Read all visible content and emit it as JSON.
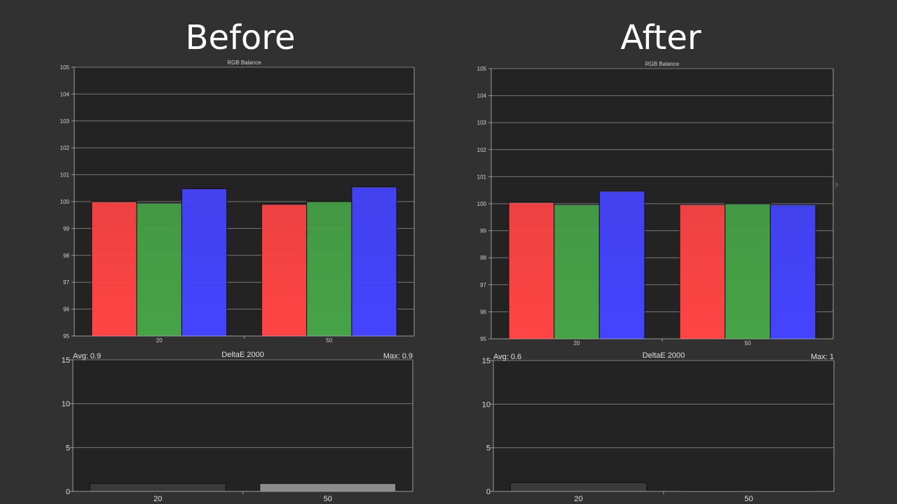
{
  "headings": {
    "before": "Before",
    "after": "After"
  },
  "colors": {
    "background": "#313131",
    "plot_bg": "#232323",
    "grid": "#7a7a7a",
    "red": "#ff4444",
    "green": "#46a346",
    "blue": "#4444ff"
  },
  "chart_data": [
    {
      "panel": "Before",
      "type": "bar",
      "title": "RGB Balance",
      "categories": [
        "20",
        "50"
      ],
      "series": [
        {
          "color": "#ff4444",
          "values": [
            100.0,
            99.9
          ]
        },
        {
          "color": "#46a346",
          "values": [
            99.95,
            100.0
          ]
        },
        {
          "color": "#4444ff",
          "values": [
            100.48,
            100.55
          ]
        }
      ],
      "ylim": [
        95,
        105
      ],
      "yticks": [
        "95",
        "96",
        "97",
        "98",
        "99",
        "100",
        "101",
        "102",
        "103",
        "104",
        "105"
      ],
      "grid": true
    },
    {
      "panel": "Before",
      "type": "bar",
      "title": "DeltaE 2000",
      "avg_label": "Avg: 0.9",
      "max_label": "Max: 0.9",
      "categories": [
        "20",
        "50"
      ],
      "values": [
        0.9,
        0.9
      ],
      "bar_colors": [
        "#3a3a3a",
        "#8c8c8c"
      ],
      "ylim": [
        0,
        15
      ],
      "yticks": [
        "0",
        "5",
        "10",
        "15"
      ],
      "grid": true
    },
    {
      "panel": "After",
      "type": "bar",
      "title": "RGB Balance",
      "categories": [
        "20",
        "50"
      ],
      "series": [
        {
          "color": "#ff4444",
          "values": [
            100.05,
            99.97
          ]
        },
        {
          "color": "#46a346",
          "values": [
            99.97,
            100.0
          ]
        },
        {
          "color": "#4444ff",
          "values": [
            100.47,
            99.97
          ]
        }
      ],
      "ylim": [
        95,
        105
      ],
      "yticks": [
        "95",
        "96",
        "97",
        "98",
        "99",
        "100",
        "101",
        "102",
        "103",
        "104",
        "105"
      ],
      "grid": true
    },
    {
      "panel": "After",
      "type": "bar",
      "title": "DeltaE 2000",
      "avg_label": "Avg: 0.6",
      "max_label": "Max: 1",
      "categories": [
        "20",
        "50"
      ],
      "values": [
        1.0,
        0.1
      ],
      "bar_colors": [
        "#3a3a3a",
        "#3a3a3a"
      ],
      "ylim": [
        0,
        15
      ],
      "yticks": [
        "0",
        "5",
        "10",
        "15"
      ],
      "grid": true
    }
  ]
}
